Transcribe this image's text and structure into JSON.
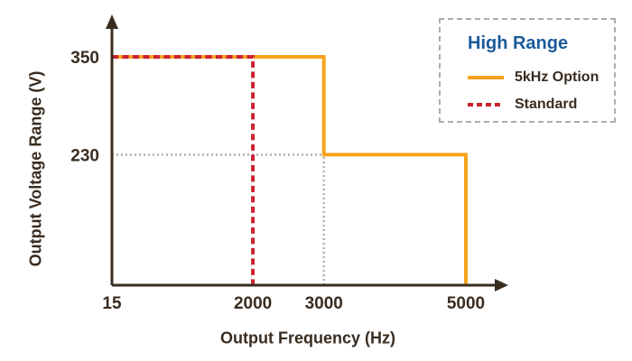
{
  "colors": {
    "background": "#FFFFFF",
    "text": "#3A2C20",
    "axis": "#3A2C20",
    "orange": "#F6A21D",
    "red": "#CB2130",
    "blue": "#1A5A9B",
    "gray": "#B4B4B4",
    "legend_border": "#ACACAC"
  },
  "chart_data": {
    "type": "line",
    "subtype": "step",
    "xlabel": "Output Frequency (Hz)",
    "ylabel": "Output Voltage Range (V)",
    "x_ticks": [
      15,
      2000,
      3000,
      5000
    ],
    "y_ticks": [
      350,
      230
    ],
    "xlim": [
      15,
      5000
    ],
    "ylim": [
      70,
      350
    ],
    "grid": false,
    "legend": {
      "title": "High Range",
      "position": "top-right",
      "entries": [
        {
          "label": "5kHz Option",
          "style": "solid",
          "color": "#F6A21D"
        },
        {
          "label": "Standard",
          "style": "dashed",
          "color": "#CB2130"
        }
      ]
    },
    "series": [
      {
        "name": "5kHz Option",
        "color": "#F6A21D",
        "style": "solid",
        "width": 4,
        "points": [
          [
            15,
            350
          ],
          [
            3000,
            350
          ],
          [
            3000,
            230
          ],
          [
            5000,
            230
          ],
          [
            5000,
            70
          ]
        ]
      },
      {
        "name": "Standard",
        "color": "#CB2130",
        "style": "dashed",
        "width": 4,
        "points": [
          [
            15,
            350
          ],
          [
            2000,
            350
          ],
          [
            2000,
            70
          ]
        ]
      }
    ],
    "reference_lines": [
      {
        "orientation": "h",
        "at": 230,
        "from": 15,
        "to": 3000,
        "color": "#B4B4B4",
        "style": "dotted"
      },
      {
        "orientation": "v",
        "at": 3000,
        "from": 70,
        "to": 230,
        "color": "#B4B4B4",
        "style": "dotted"
      }
    ]
  }
}
